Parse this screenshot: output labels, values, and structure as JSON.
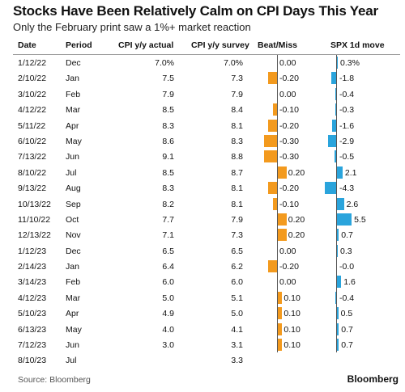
{
  "header": {
    "title": "Stocks Have Been Relatively Calm on CPI Days This Year",
    "subtitle": "Only the February print saw a 1%+ market reaction"
  },
  "columns": {
    "date": "Date",
    "period": "Period",
    "actual": "CPI y/y actual",
    "survey": "CPI y/y survey",
    "beat": "Beat/Miss",
    "spx": "SPX 1d move"
  },
  "footer": {
    "source": "Source: Bloomberg",
    "brand": "Bloomberg"
  },
  "colors": {
    "beat_miss": "#f39a1e",
    "spx": "#2aa4dc"
  },
  "chart_data": {
    "type": "table",
    "rows": [
      {
        "date": "1/12/22",
        "period": "Dec",
        "actual": "7.0%",
        "survey": "7.0%",
        "beat": "0.00",
        "beat_val": 0.0,
        "spx": "0.3%",
        "spx_val": 0.3
      },
      {
        "date": "2/10/22",
        "period": "Jan",
        "actual": "7.5",
        "survey": "7.3",
        "beat": "-0.20",
        "beat_val": -0.2,
        "spx": "-1.8",
        "spx_val": -1.8
      },
      {
        "date": "3/10/22",
        "period": "Feb",
        "actual": "7.9",
        "survey": "7.9",
        "beat": "0.00",
        "beat_val": 0.0,
        "spx": "-0.4",
        "spx_val": -0.4
      },
      {
        "date": "4/12/22",
        "period": "Mar",
        "actual": "8.5",
        "survey": "8.4",
        "beat": "-0.10",
        "beat_val": -0.1,
        "spx": "-0.3",
        "spx_val": -0.3
      },
      {
        "date": "5/11/22",
        "period": "Apr",
        "actual": "8.3",
        "survey": "8.1",
        "beat": "-0.20",
        "beat_val": -0.2,
        "spx": "-1.6",
        "spx_val": -1.6
      },
      {
        "date": "6/10/22",
        "period": "May",
        "actual": "8.6",
        "survey": "8.3",
        "beat": "-0.30",
        "beat_val": -0.3,
        "spx": "-2.9",
        "spx_val": -2.9
      },
      {
        "date": "7/13/22",
        "period": "Jun",
        "actual": "9.1",
        "survey": "8.8",
        "beat": "-0.30",
        "beat_val": -0.3,
        "spx": "-0.5",
        "spx_val": -0.5
      },
      {
        "date": "8/10/22",
        "period": "Jul",
        "actual": "8.5",
        "survey": "8.7",
        "beat": "0.20",
        "beat_val": 0.2,
        "spx": "2.1",
        "spx_val": 2.1
      },
      {
        "date": "9/13/22",
        "period": "Aug",
        "actual": "8.3",
        "survey": "8.1",
        "beat": "-0.20",
        "beat_val": -0.2,
        "spx": "-4.3",
        "spx_val": -4.3
      },
      {
        "date": "10/13/22",
        "period": "Sep",
        "actual": "8.2",
        "survey": "8.1",
        "beat": "-0.10",
        "beat_val": -0.1,
        "spx": "2.6",
        "spx_val": 2.6
      },
      {
        "date": "11/10/22",
        "period": "Oct",
        "actual": "7.7",
        "survey": "7.9",
        "beat": "0.20",
        "beat_val": 0.2,
        "spx": "5.5",
        "spx_val": 5.5
      },
      {
        "date": "12/13/22",
        "period": "Nov",
        "actual": "7.1",
        "survey": "7.3",
        "beat": "0.20",
        "beat_val": 0.2,
        "spx": "0.7",
        "spx_val": 0.7
      },
      {
        "date": "1/12/23",
        "period": "Dec",
        "actual": "6.5",
        "survey": "6.5",
        "beat": "0.00",
        "beat_val": 0.0,
        "spx": "0.3",
        "spx_val": 0.3
      },
      {
        "date": "2/14/23",
        "period": "Jan",
        "actual": "6.4",
        "survey": "6.2",
        "beat": "-0.20",
        "beat_val": -0.2,
        "spx": "-0.0",
        "spx_val": -0.0
      },
      {
        "date": "3/14/23",
        "period": "Feb",
        "actual": "6.0",
        "survey": "6.0",
        "beat": "0.00",
        "beat_val": 0.0,
        "spx": "1.6",
        "spx_val": 1.6
      },
      {
        "date": "4/12/23",
        "period": "Mar",
        "actual": "5.0",
        "survey": "5.1",
        "beat": "0.10",
        "beat_val": 0.1,
        "spx": "-0.4",
        "spx_val": -0.4
      },
      {
        "date": "5/10/23",
        "period": "Apr",
        "actual": "4.9",
        "survey": "5.0",
        "beat": "0.10",
        "beat_val": 0.1,
        "spx": "0.5",
        "spx_val": 0.5
      },
      {
        "date": "6/13/23",
        "period": "May",
        "actual": "4.0",
        "survey": "4.1",
        "beat": "0.10",
        "beat_val": 0.1,
        "spx": "0.7",
        "spx_val": 0.7
      },
      {
        "date": "7/12/23",
        "period": "Jun",
        "actual": "3.0",
        "survey": "3.1",
        "beat": "0.10",
        "beat_val": 0.1,
        "spx": "0.7",
        "spx_val": 0.7
      },
      {
        "date": "8/10/23",
        "period": "Jul",
        "actual": "",
        "survey": "3.3",
        "beat": "",
        "beat_val": null,
        "spx": "",
        "spx_val": null
      }
    ]
  }
}
